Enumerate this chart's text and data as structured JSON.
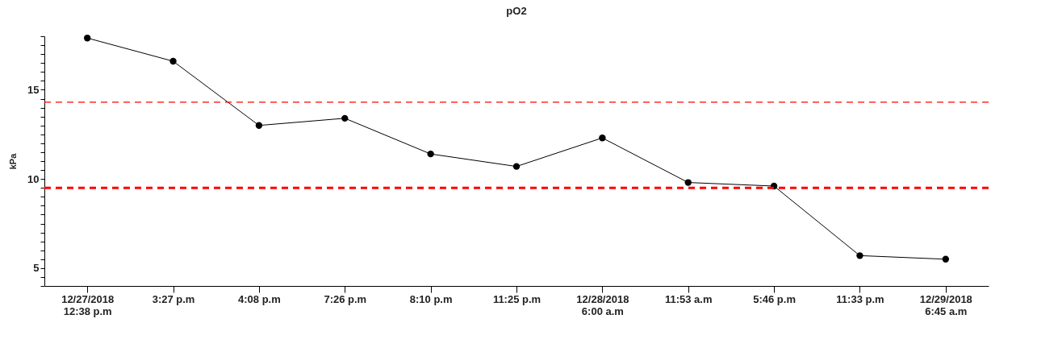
{
  "chart_data": {
    "type": "line",
    "title": "pO2",
    "ylabel": "kPa",
    "categories": [
      "12/27/2018\n12:38 p.m",
      "3:27 p.m",
      "4:08 p.m",
      "7:26 p.m",
      "8:10 p.m",
      "11:25 p.m",
      "12/28/2018\n6:00 a.m",
      "11:53 a.m",
      "5:46 p.m",
      "11:33 p.m",
      "12/29/2018\n6:45 a.m"
    ],
    "series": [
      {
        "color": "#000000",
        "values": [
          17.9,
          16.6,
          13.0,
          13.4,
          11.4,
          10.7,
          12.3,
          9.8,
          9.6,
          5.7,
          5.5
        ]
      }
    ],
    "ylim": [
      4,
      18
    ],
    "yticks": [
      {
        "value": 4,
        "label": null
      },
      {
        "value": 4.5,
        "label": null
      },
      5,
      {
        "value": 5.5,
        "label": null
      },
      {
        "value": 6,
        "label": null
      },
      {
        "value": 6.5,
        "label": null
      },
      {
        "value": 7,
        "label": null
      },
      {
        "value": 7.5,
        "label": null
      },
      {
        "value": 8,
        "label": null
      },
      {
        "value": 8.5,
        "label": null
      },
      {
        "value": 9,
        "label": null
      },
      {
        "value": 9.5,
        "label": null
      },
      10,
      {
        "value": 10.5,
        "label": null
      },
      {
        "value": 11,
        "label": null
      },
      {
        "value": 11.5,
        "label": null
      },
      {
        "value": 12,
        "label": null
      },
      {
        "value": 12.5,
        "label": null
      },
      {
        "value": 13,
        "label": null
      },
      {
        "value": 13.5,
        "label": null
      },
      {
        "value": 14,
        "label": null
      },
      {
        "value": 14.5,
        "label": null
      },
      15,
      {
        "value": 15.5,
        "label": null
      },
      {
        "value": 16,
        "label": null
      },
      {
        "value": 16.5,
        "label": null
      },
      {
        "value": 17,
        "label": null
      },
      {
        "value": 17.5,
        "label": null
      },
      {
        "value": 18,
        "label": null
      }
    ],
    "ref_lines": [
      {
        "axis": "y",
        "value": 14.3,
        "color": "#ff0000",
        "line_style": "dashed"
      },
      {
        "axis": "y",
        "value": 9.5,
        "color": "#ff0000",
        "line_style": "dashed"
      }
    ],
    "marker": "circle",
    "line_style": "solid",
    "grid": false
  }
}
